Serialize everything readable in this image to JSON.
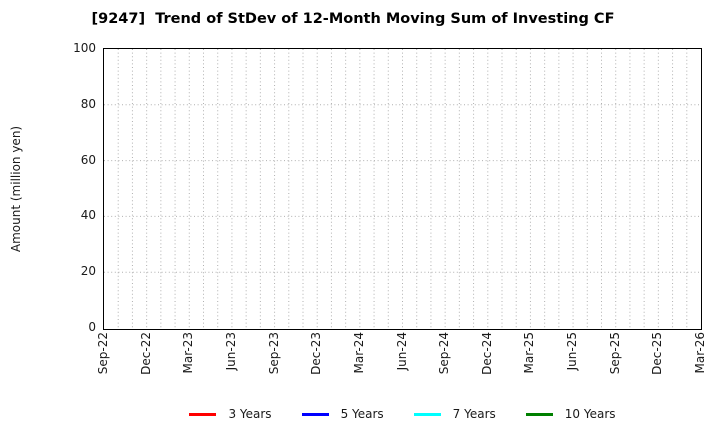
{
  "chart_data": {
    "type": "line",
    "title": "[9247]  Trend of StDev of 12-Month Moving Sum of Investing CF",
    "xlabel": "",
    "ylabel": "Amount (million yen)",
    "ylim": [
      0,
      100
    ],
    "yticks": [
      0,
      20,
      40,
      60,
      80,
      100
    ],
    "x_tick_labels": [
      "Sep-22",
      "Dec-22",
      "Mar-23",
      "Jun-23",
      "Sep-23",
      "Dec-23",
      "Mar-24",
      "Jun-24",
      "Sep-24",
      "Dec-24",
      "Mar-25",
      "Jun-25",
      "Sep-25",
      "Dec-25",
      "Mar-26"
    ],
    "months_span": 42,
    "grid": true,
    "grid_style": "dotted",
    "grid_color": "#b0b0b0",
    "legend_position": "bottom",
    "series": [
      {
        "name": "3 Years",
        "color": "#ff0000",
        "values": []
      },
      {
        "name": "5 Years",
        "color": "#0000ff",
        "values": []
      },
      {
        "name": "7 Years",
        "color": "#00ffff",
        "values": []
      },
      {
        "name": "10 Years",
        "color": "#008000",
        "values": []
      }
    ]
  },
  "colors": {
    "spine": "#000000",
    "text": "#1a1a1a",
    "background": "#ffffff"
  }
}
